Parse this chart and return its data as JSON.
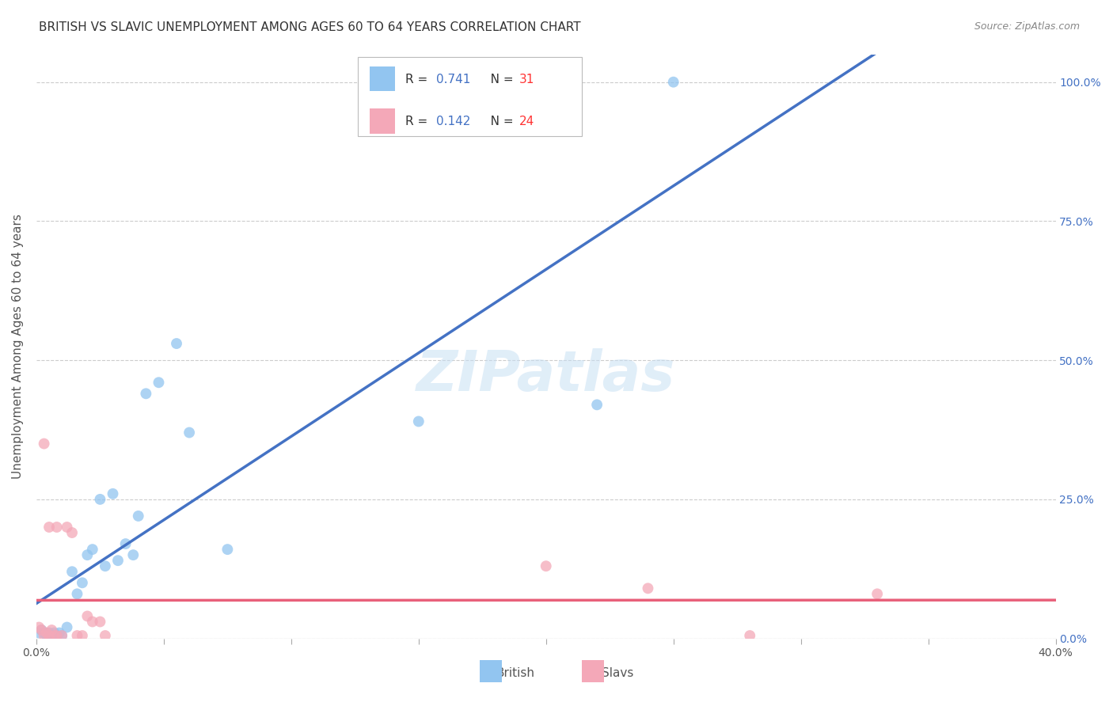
{
  "title": "BRITISH VS SLAVIC UNEMPLOYMENT AMONG AGES 60 TO 64 YEARS CORRELATION CHART",
  "source": "Source: ZipAtlas.com",
  "ylabel": "Unemployment Among Ages 60 to 64 years",
  "xlim": [
    0.0,
    0.4
  ],
  "ylim": [
    0.0,
    1.05
  ],
  "xticks": [
    0.0,
    0.05,
    0.1,
    0.15,
    0.2,
    0.25,
    0.3,
    0.35,
    0.4
  ],
  "xtick_labels": [
    "0.0%",
    "",
    "",
    "",
    "",
    "",
    "",
    "",
    "40.0%"
  ],
  "yticks": [
    0.0,
    0.25,
    0.5,
    0.75,
    1.0
  ],
  "ytick_labels": [
    "0.0%",
    "25.0%",
    "50.0%",
    "75.0%",
    "100.0%"
  ],
  "british_color": "#92C5F0",
  "slavs_color": "#F4A8B8",
  "british_line_color": "#4472C4",
  "slavs_line_color": "#E8607A",
  "watermark": "ZIPatlas",
  "background_color": "#FFFFFF",
  "grid_color": "#CCCCCC",
  "title_fontsize": 11,
  "axis_label_fontsize": 11,
  "tick_fontsize": 10,
  "marker_size": 100,
  "british_x": [
    0.001,
    0.002,
    0.003,
    0.004,
    0.005,
    0.006,
    0.007,
    0.008,
    0.009,
    0.01,
    0.012,
    0.014,
    0.016,
    0.018,
    0.02,
    0.022,
    0.025,
    0.027,
    0.03,
    0.032,
    0.035,
    0.038,
    0.04,
    0.043,
    0.048,
    0.055,
    0.06,
    0.075,
    0.15,
    0.22,
    0.25
  ],
  "british_y": [
    0.01,
    0.015,
    0.01,
    0.005,
    0.01,
    0.005,
    0.01,
    0.005,
    0.01,
    0.005,
    0.02,
    0.12,
    0.08,
    0.1,
    0.15,
    0.16,
    0.25,
    0.13,
    0.26,
    0.14,
    0.17,
    0.15,
    0.22,
    0.44,
    0.46,
    0.53,
    0.37,
    0.16,
    0.39,
    0.42,
    1.0
  ],
  "slavs_x": [
    0.001,
    0.002,
    0.003,
    0.004,
    0.005,
    0.006,
    0.007,
    0.008,
    0.01,
    0.012,
    0.014,
    0.016,
    0.018,
    0.02,
    0.022,
    0.025,
    0.027,
    0.003,
    0.005,
    0.008,
    0.2,
    0.24,
    0.28,
    0.33
  ],
  "slavs_y": [
    0.02,
    0.015,
    0.005,
    0.01,
    0.005,
    0.015,
    0.005,
    0.005,
    0.005,
    0.2,
    0.19,
    0.005,
    0.005,
    0.04,
    0.03,
    0.03,
    0.005,
    0.35,
    0.2,
    0.2,
    0.13,
    0.09,
    0.005,
    0.08
  ]
}
